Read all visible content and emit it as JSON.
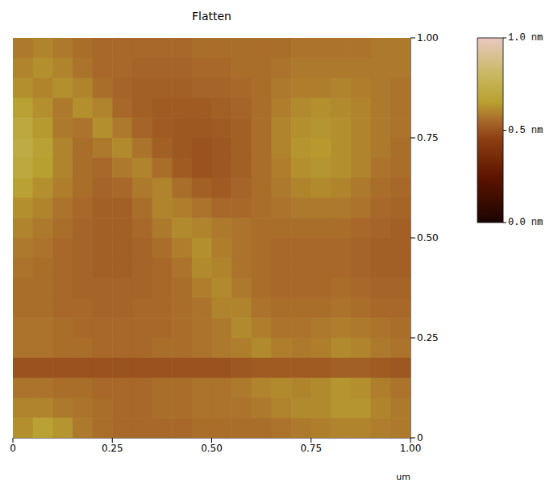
{
  "chart_data": {
    "type": "heatmap",
    "title": "Flatten",
    "x_label": "um",
    "x": [
      0.025,
      0.075,
      0.125,
      0.175,
      0.225,
      0.275,
      0.325,
      0.375,
      0.425,
      0.475,
      0.525,
      0.575,
      0.625,
      0.675,
      0.725,
      0.775,
      0.825,
      0.875,
      0.925,
      0.975
    ],
    "y": [
      0.975,
      0.925,
      0.875,
      0.825,
      0.775,
      0.725,
      0.675,
      0.625,
      0.575,
      0.525,
      0.475,
      0.425,
      0.375,
      0.325,
      0.275,
      0.225,
      0.175,
      0.125,
      0.075,
      0.025
    ],
    "z": [
      [
        0.58,
        0.6,
        0.58,
        0.56,
        0.55,
        0.55,
        0.55,
        0.55,
        0.55,
        0.56,
        0.56,
        0.56,
        0.56,
        0.56,
        0.57,
        0.57,
        0.57,
        0.57,
        0.58,
        0.58
      ],
      [
        0.6,
        0.62,
        0.6,
        0.57,
        0.55,
        0.55,
        0.54,
        0.54,
        0.54,
        0.55,
        0.55,
        0.56,
        0.56,
        0.57,
        0.58,
        0.58,
        0.58,
        0.58,
        0.58,
        0.58
      ],
      [
        0.62,
        0.6,
        0.62,
        0.6,
        0.56,
        0.54,
        0.53,
        0.53,
        0.53,
        0.54,
        0.54,
        0.55,
        0.56,
        0.58,
        0.59,
        0.59,
        0.6,
        0.59,
        0.58,
        0.57
      ],
      [
        0.66,
        0.62,
        0.58,
        0.62,
        0.6,
        0.55,
        0.53,
        0.52,
        0.52,
        0.52,
        0.53,
        0.54,
        0.56,
        0.59,
        0.61,
        0.62,
        0.61,
        0.6,
        0.58,
        0.57
      ],
      [
        0.7,
        0.64,
        0.58,
        0.57,
        0.62,
        0.58,
        0.54,
        0.52,
        0.51,
        0.51,
        0.52,
        0.53,
        0.56,
        0.6,
        0.62,
        0.63,
        0.62,
        0.6,
        0.58,
        0.57
      ],
      [
        0.72,
        0.66,
        0.6,
        0.56,
        0.58,
        0.61,
        0.57,
        0.53,
        0.51,
        0.5,
        0.51,
        0.53,
        0.56,
        0.6,
        0.63,
        0.64,
        0.62,
        0.6,
        0.58,
        0.56
      ],
      [
        0.7,
        0.65,
        0.6,
        0.56,
        0.55,
        0.58,
        0.6,
        0.56,
        0.52,
        0.5,
        0.51,
        0.53,
        0.56,
        0.59,
        0.62,
        0.63,
        0.62,
        0.6,
        0.57,
        0.56
      ],
      [
        0.66,
        0.62,
        0.59,
        0.56,
        0.54,
        0.55,
        0.58,
        0.6,
        0.56,
        0.53,
        0.52,
        0.54,
        0.56,
        0.58,
        0.6,
        0.61,
        0.6,
        0.58,
        0.56,
        0.55
      ],
      [
        0.62,
        0.6,
        0.57,
        0.55,
        0.53,
        0.53,
        0.56,
        0.6,
        0.59,
        0.57,
        0.55,
        0.55,
        0.56,
        0.57,
        0.58,
        0.58,
        0.58,
        0.57,
        0.55,
        0.54
      ],
      [
        0.6,
        0.58,
        0.56,
        0.54,
        0.53,
        0.53,
        0.55,
        0.58,
        0.61,
        0.6,
        0.58,
        0.57,
        0.56,
        0.56,
        0.56,
        0.56,
        0.56,
        0.55,
        0.54,
        0.53
      ],
      [
        0.58,
        0.57,
        0.55,
        0.54,
        0.53,
        0.53,
        0.54,
        0.56,
        0.59,
        0.62,
        0.59,
        0.57,
        0.56,
        0.55,
        0.55,
        0.55,
        0.55,
        0.54,
        0.53,
        0.53
      ],
      [
        0.57,
        0.56,
        0.55,
        0.54,
        0.53,
        0.53,
        0.54,
        0.55,
        0.57,
        0.61,
        0.6,
        0.57,
        0.56,
        0.55,
        0.55,
        0.55,
        0.55,
        0.54,
        0.53,
        0.53
      ],
      [
        0.56,
        0.56,
        0.55,
        0.54,
        0.54,
        0.54,
        0.54,
        0.55,
        0.56,
        0.59,
        0.61,
        0.58,
        0.56,
        0.55,
        0.55,
        0.55,
        0.56,
        0.55,
        0.54,
        0.54
      ],
      [
        0.56,
        0.56,
        0.55,
        0.55,
        0.54,
        0.54,
        0.55,
        0.55,
        0.56,
        0.57,
        0.6,
        0.6,
        0.57,
        0.56,
        0.56,
        0.56,
        0.57,
        0.56,
        0.55,
        0.55
      ],
      [
        0.57,
        0.57,
        0.56,
        0.55,
        0.55,
        0.55,
        0.55,
        0.55,
        0.56,
        0.57,
        0.58,
        0.61,
        0.59,
        0.57,
        0.57,
        0.58,
        0.59,
        0.58,
        0.57,
        0.56
      ],
      [
        0.57,
        0.57,
        0.56,
        0.56,
        0.55,
        0.55,
        0.55,
        0.56,
        0.56,
        0.57,
        0.58,
        0.59,
        0.61,
        0.59,
        0.58,
        0.59,
        0.61,
        0.6,
        0.58,
        0.57
      ],
      [
        0.5,
        0.5,
        0.5,
        0.5,
        0.5,
        0.5,
        0.5,
        0.5,
        0.5,
        0.5,
        0.5,
        0.51,
        0.52,
        0.52,
        0.52,
        0.52,
        0.53,
        0.53,
        0.52,
        0.51
      ],
      [
        0.57,
        0.57,
        0.56,
        0.56,
        0.55,
        0.55,
        0.55,
        0.56,
        0.56,
        0.57,
        0.57,
        0.58,
        0.6,
        0.61,
        0.6,
        0.61,
        0.63,
        0.62,
        0.59,
        0.57
      ],
      [
        0.6,
        0.6,
        0.58,
        0.57,
        0.56,
        0.55,
        0.55,
        0.56,
        0.56,
        0.57,
        0.57,
        0.57,
        0.58,
        0.6,
        0.61,
        0.61,
        0.63,
        0.63,
        0.6,
        0.58
      ],
      [
        0.62,
        0.66,
        0.63,
        0.58,
        0.56,
        0.55,
        0.55,
        0.55,
        0.55,
        0.56,
        0.56,
        0.56,
        0.56,
        0.57,
        0.58,
        0.59,
        0.6,
        0.6,
        0.59,
        0.58
      ]
    ],
    "xlim": [
      0,
      1
    ],
    "ylim": [
      0,
      1
    ],
    "xticks": [
      0,
      0.25,
      {
        "value": 0.5,
        "label": "0.50"
      },
      0.75,
      {
        "value": 1,
        "label": "1.00"
      }
    ],
    "yticks": [
      0,
      0.25,
      {
        "value": 0.5,
        "label": "0.50"
      },
      0.75,
      {
        "value": 1,
        "label": "1.00"
      }
    ],
    "colorbar_lim": [
      0,
      1
    ],
    "colorbar_ticks": [
      {
        "value": 0,
        "label": "0.0 nm"
      },
      {
        "value": 0.5,
        "label": "0.5 nm"
      },
      {
        "value": 1,
        "label": "1.0 nm"
      }
    ]
  }
}
